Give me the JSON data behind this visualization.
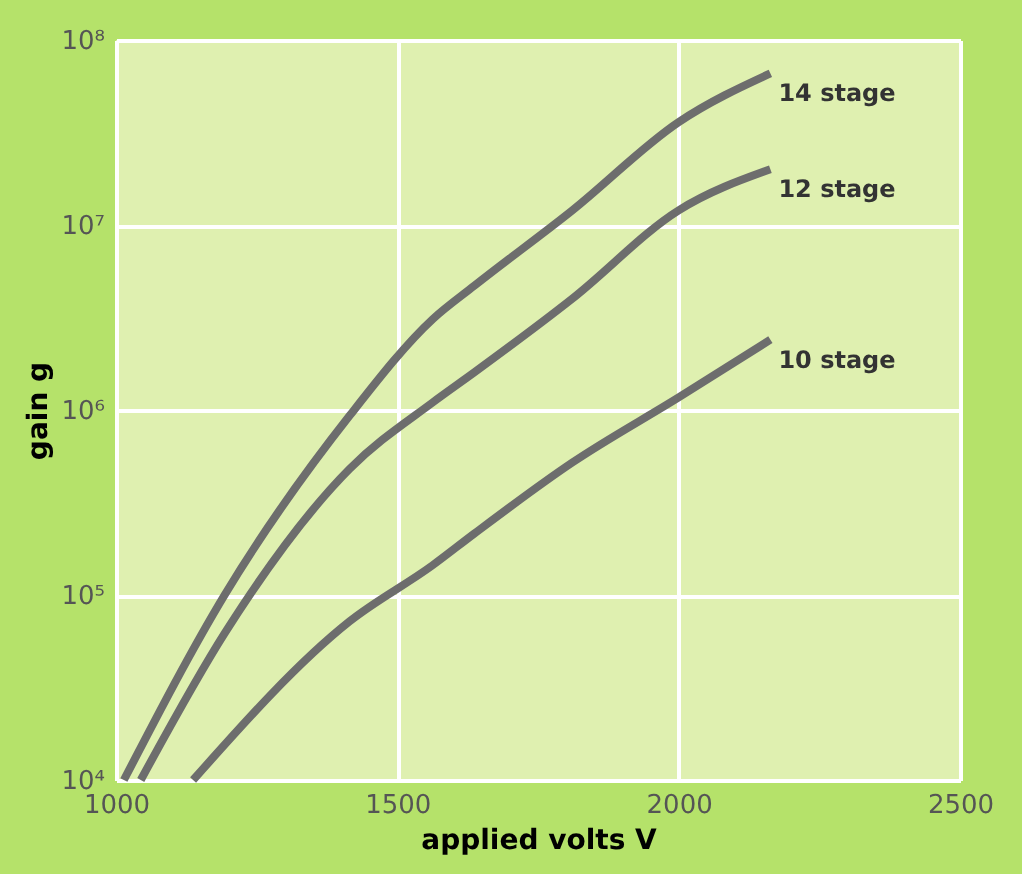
{
  "chart_data": {
    "type": "line",
    "xlabel": "applied volts  V",
    "ylabel": "gain  g",
    "xlim": [
      1000,
      2500
    ],
    "xticks": [
      1000,
      1500,
      2000,
      2500
    ],
    "ylim": [
      10000,
      100000000
    ],
    "yticks": [
      {
        "value": 10000,
        "label": "10⁴"
      },
      {
        "value": 100000,
        "label": "10⁵"
      },
      {
        "value": 1000000,
        "label": "10⁶"
      },
      {
        "value": 10000000,
        "label": "10⁷"
      },
      {
        "value": 100000000,
        "label": "10⁸"
      }
    ],
    "log": "y",
    "grid": true,
    "legend": false,
    "marker": "none",
    "line_style": "solid",
    "series": [
      {
        "name": "14 stage",
        "color": "#6d6d6d",
        "x": [
          1014,
          1193,
          1415,
          1563,
          1637,
          1811,
          2000,
          2163
        ],
        "values": [
          10000,
          100000,
          930000,
          3100000,
          4700000,
          12000000,
          36000000,
          66000000
        ]
      },
      {
        "name": "12 stage",
        "color": "#6d6d6d",
        "x": [
          1044,
          1193,
          1415,
          1563,
          1637,
          1811,
          2000,
          2163
        ],
        "values": [
          10000,
          62000,
          480000,
          1100000,
          1600000,
          4000000,
          12000000,
          20000000
        ]
      },
      {
        "name": "10 stage",
        "color": "#6d6d6d",
        "x": [
          1137,
          1415,
          1563,
          1637,
          1811,
          2000,
          2163
        ],
        "values": [
          10000,
          72000,
          145000,
          215000,
          520000,
          1170000,
          2400000
        ]
      }
    ]
  }
}
